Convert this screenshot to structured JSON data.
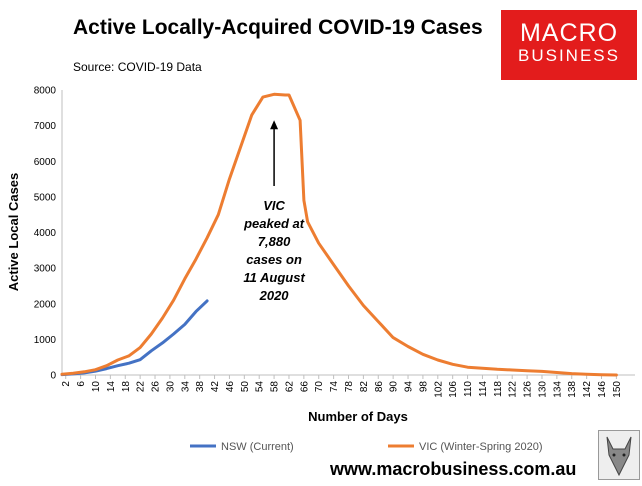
{
  "header": {
    "title": "Active Locally-Acquired COVID-19 Cases",
    "source": "Source: COVID-19 Data",
    "logo_line1": "MACRO",
    "logo_line2": "BUSINESS"
  },
  "footer": {
    "website": "www.macrobusiness.com.au"
  },
  "colors": {
    "nsw": "#4472c4",
    "vic": "#ed7d31",
    "logo": "#e31c1c"
  },
  "chart_data": {
    "type": "line",
    "title": "Active Locally-Acquired COVID-19 Cases",
    "xlabel": "Number of Days",
    "ylabel": "Active Local Cases",
    "ylim": [
      0,
      8000
    ],
    "xlim": [
      1,
      155
    ],
    "yticks": [
      0,
      1000,
      2000,
      3000,
      4000,
      5000,
      6000,
      7000,
      8000
    ],
    "xticks": [
      2,
      6,
      10,
      14,
      18,
      22,
      26,
      30,
      34,
      38,
      42,
      46,
      50,
      54,
      58,
      62,
      66,
      70,
      74,
      78,
      82,
      86,
      90,
      94,
      98,
      102,
      106,
      110,
      114,
      118,
      122,
      126,
      130,
      134,
      138,
      142,
      146,
      150
    ],
    "grid": false,
    "legend_position": "bottom",
    "annotation": {
      "lines": [
        "VIC",
        "peaked at",
        "7,880",
        "cases on",
        "11 August",
        "2020"
      ],
      "arrow_x": 58,
      "arrow_y": 7880
    },
    "series": [
      {
        "name": "NSW (Current)",
        "color": "#4472c4",
        "x": [
          1,
          4,
          7,
          10,
          13,
          16,
          19,
          22,
          25,
          28,
          31,
          34,
          37,
          40
        ],
        "y": [
          10,
          30,
          60,
          110,
          180,
          260,
          330,
          430,
          680,
          900,
          1150,
          1420,
          1780,
          2080
        ]
      },
      {
        "name": "VIC (Winter-Spring 2020)",
        "color": "#ed7d31",
        "x": [
          1,
          4,
          7,
          10,
          13,
          16,
          19,
          22,
          25,
          28,
          31,
          34,
          37,
          40,
          43,
          46,
          49,
          52,
          55,
          58,
          61,
          62,
          65,
          66,
          67,
          70,
          74,
          78,
          82,
          86,
          90,
          94,
          98,
          102,
          106,
          110,
          114,
          118,
          122,
          126,
          130,
          134,
          138,
          142,
          146,
          150
        ],
        "y": [
          20,
          50,
          90,
          150,
          260,
          420,
          540,
          770,
          1150,
          1600,
          2100,
          2700,
          3250,
          3850,
          4500,
          5500,
          6400,
          7300,
          7800,
          7880,
          7860,
          7860,
          7150,
          4900,
          4300,
          3700,
          3100,
          2500,
          1950,
          1500,
          1050,
          800,
          580,
          420,
          300,
          220,
          190,
          160,
          140,
          120,
          100,
          70,
          40,
          20,
          5,
          0
        ]
      }
    ]
  }
}
